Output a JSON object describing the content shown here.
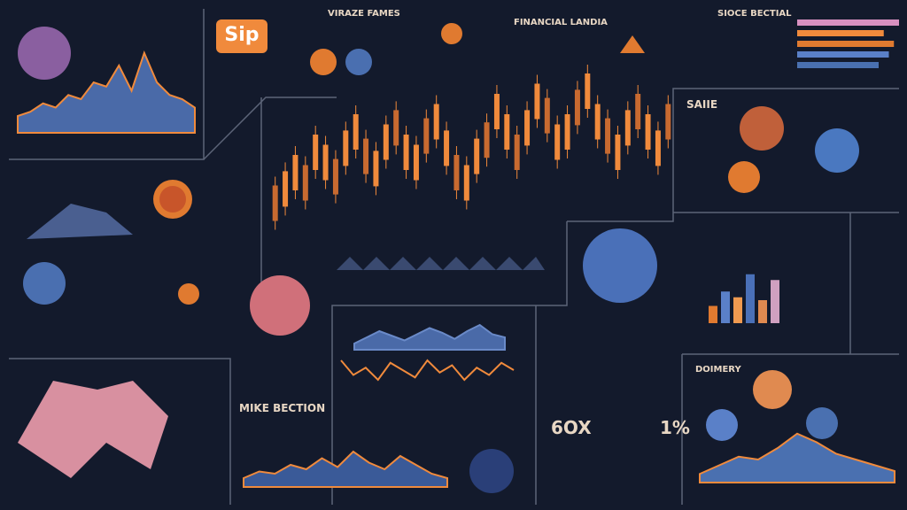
{
  "logo": "Sip",
  "titles": [
    "SIOCE BECTIAL",
    "VIRAZE FAMES",
    "MIKE BECTION",
    "DOIMERY",
    "SAIIE",
    "FINANCIAL LANDIA"
  ],
  "headline": "6OX",
  "percent": "1%",
  "area_top_left": {
    "values": [
      20,
      25,
      35,
      30,
      45,
      40,
      60,
      55,
      80,
      50,
      95,
      60,
      45,
      40,
      30
    ]
  },
  "candles": {
    "values": [
      35,
      42,
      50,
      45,
      60,
      55,
      48,
      62,
      70,
      58,
      52,
      65,
      72,
      60,
      55,
      68,
      75,
      62,
      50,
      45,
      58,
      66,
      80,
      70,
      60,
      72,
      85,
      78,
      65,
      70,
      82,
      90,
      75,
      68,
      60,
      72,
      80,
      70,
      62,
      75
    ]
  },
  "wave_blue": {
    "values": [
      20,
      40,
      60,
      45,
      30,
      50,
      70,
      55,
      35,
      60,
      80,
      50,
      40
    ]
  },
  "wave_orange": {
    "values": [
      60,
      30,
      45,
      20,
      55,
      40,
      25,
      60,
      35,
      50,
      20,
      45,
      30,
      55,
      40
    ]
  },
  "area_bottom": {
    "values": [
      20,
      35,
      30,
      50,
      40,
      65,
      45,
      80,
      55,
      40,
      70,
      50,
      30,
      20
    ]
  },
  "area_right": {
    "values": [
      15,
      30,
      45,
      40,
      60,
      85,
      70,
      50,
      40,
      30,
      20
    ]
  },
  "bars_right": {
    "values": [
      30,
      55,
      45,
      85,
      40,
      75
    ]
  },
  "hbars_top_right": {
    "values": [
      100,
      85,
      95,
      90,
      80
    ]
  }
}
